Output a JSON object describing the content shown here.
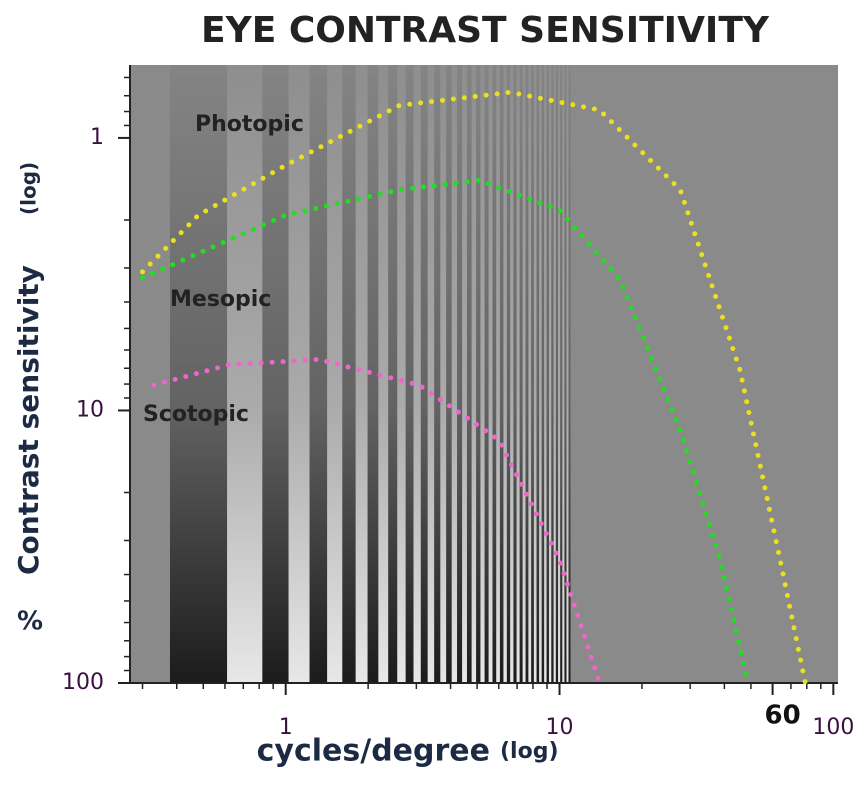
{
  "chart_data": {
    "type": "line",
    "title": "EYE CONTRAST SENSITIVITY",
    "x_label": "cycles/degree",
    "x_label_scale": "(log)",
    "y_label": "Contrast sensitivity",
    "y_label_scale": "(log)",
    "y_unit": "%",
    "x_log": true,
    "y_log": true,
    "xlim": [
      0.27,
      104
    ],
    "ylim": [
      100,
      0.54
    ],
    "xticks": [
      1,
      10,
      60,
      100
    ],
    "yticks": [
      1,
      10,
      100
    ],
    "xminorticks": [
      0.3,
      0.4,
      0.5,
      0.6,
      0.7,
      0.8,
      0.9,
      2,
      3,
      4,
      5,
      6,
      7,
      8,
      9,
      20,
      30,
      40,
      50,
      70,
      80,
      90
    ],
    "yminorticks": [
      0.6,
      0.7,
      0.8,
      0.9,
      2,
      3,
      4,
      5,
      6,
      7,
      8,
      9,
      20,
      30,
      40,
      50,
      60,
      70,
      80,
      90
    ],
    "series": [
      {
        "name": "Photopic",
        "color": "#e8e020",
        "x": [
          0.3,
          0.48,
          1.0,
          2.6,
          6.6,
          14,
          27.6,
          45.6,
          63.9,
          79
        ],
        "values": [
          3.1,
          1.92,
          1.26,
          0.76,
          0.68,
          0.79,
          1.55,
          7.1,
          35.3,
          100
        ]
      },
      {
        "name": "Mesopic",
        "color": "#22dd22",
        "x": [
          0.3,
          1.0,
          2.6,
          5.1,
          10,
          16.6,
          27.6,
          38.6,
          48.8
        ],
        "values": [
          3.26,
          1.92,
          1.55,
          1.43,
          1.84,
          3.3,
          11.8,
          35.3,
          100
        ]
      },
      {
        "name": "Scotopic",
        "color": "#ee66cc",
        "x": [
          0.33,
          0.62,
          1.32,
          3.07,
          6.0,
          10,
          14
        ],
        "values": [
          8.07,
          6.8,
          6.5,
          8.07,
          12.8,
          35.3,
          100
        ]
      }
    ]
  }
}
